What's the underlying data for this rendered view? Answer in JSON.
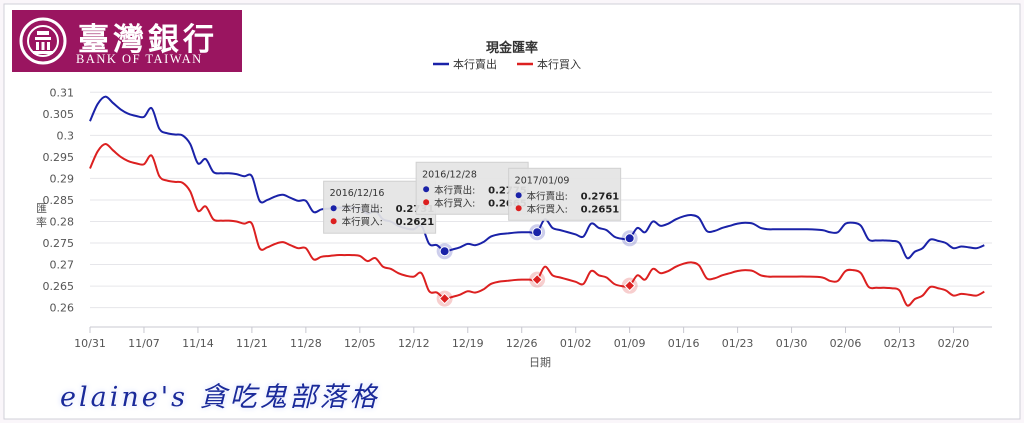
{
  "logo": {
    "name_cn": "臺灣銀行",
    "name_en": "BANK OF TAIWAN"
  },
  "watermark": "elaine's 貪吃鬼部落格",
  "chart_data": {
    "type": "line",
    "title": "現金匯率",
    "xlabel": "日期",
    "ylabel": "匯率",
    "ylim": [
      0.2555,
      0.311
    ],
    "y_ticks": [
      0.26,
      0.265,
      0.27,
      0.275,
      0.28,
      0.285,
      0.29,
      0.295,
      0.3,
      0.305,
      0.31
    ],
    "x_range": [
      "2016-10-31",
      "2017-02-25"
    ],
    "x_ticks": [
      {
        "date": "2016-10-31",
        "label": "10/31"
      },
      {
        "date": "2016-11-07",
        "label": "11/07"
      },
      {
        "date": "2016-11-14",
        "label": "11/14"
      },
      {
        "date": "2016-11-21",
        "label": "11/21"
      },
      {
        "date": "2016-11-28",
        "label": "11/28"
      },
      {
        "date": "2016-12-05",
        "label": "12/05"
      },
      {
        "date": "2016-12-12",
        "label": "12/12"
      },
      {
        "date": "2016-12-19",
        "label": "12/19"
      },
      {
        "date": "2016-12-26",
        "label": "12/26"
      },
      {
        "date": "2017-01-02",
        "label": "01/02"
      },
      {
        "date": "2017-01-09",
        "label": "01/09"
      },
      {
        "date": "2017-01-16",
        "label": "01/16"
      },
      {
        "date": "2017-01-23",
        "label": "01/23"
      },
      {
        "date": "2017-01-30",
        "label": "01/30"
      },
      {
        "date": "2017-02-06",
        "label": "02/06"
      },
      {
        "date": "2017-02-13",
        "label": "02/13"
      },
      {
        "date": "2017-02-20",
        "label": "02/20"
      }
    ],
    "grid": true,
    "legend": "top-center",
    "series": [
      {
        "name": "本行賣出",
        "color": "#1a22a8",
        "points": [
          [
            "2016-10-31",
            0.3033
          ],
          [
            "2016-11-01",
            0.3073
          ],
          [
            "2016-11-02",
            0.309
          ],
          [
            "2016-11-03",
            0.3075
          ],
          [
            "2016-11-04",
            0.306
          ],
          [
            "2016-11-05",
            0.305
          ],
          [
            "2016-11-06",
            0.3045
          ],
          [
            "2016-11-07",
            0.3043
          ],
          [
            "2016-11-08",
            0.3063
          ],
          [
            "2016-11-09",
            0.3015
          ],
          [
            "2016-11-10",
            0.3005
          ],
          [
            "2016-11-11",
            0.3002
          ],
          [
            "2016-11-12",
            0.3
          ],
          [
            "2016-11-13",
            0.298
          ],
          [
            "2016-11-14",
            0.2935
          ],
          [
            "2016-11-15",
            0.2945
          ],
          [
            "2016-11-16",
            0.2915
          ],
          [
            "2016-11-17",
            0.2912
          ],
          [
            "2016-11-18",
            0.2912
          ],
          [
            "2016-11-19",
            0.291
          ],
          [
            "2016-11-20",
            0.2905
          ],
          [
            "2016-11-21",
            0.2905
          ],
          [
            "2016-11-22",
            0.2848
          ],
          [
            "2016-11-23",
            0.285
          ],
          [
            "2016-11-24",
            0.2858
          ],
          [
            "2016-11-25",
            0.2862
          ],
          [
            "2016-11-26",
            0.2855
          ],
          [
            "2016-11-27",
            0.2848
          ],
          [
            "2016-11-28",
            0.2848
          ],
          [
            "2016-11-29",
            0.2822
          ],
          [
            "2016-11-30",
            0.2828
          ],
          [
            "2016-12-01",
            0.283
          ],
          [
            "2016-12-02",
            0.2832
          ],
          [
            "2016-12-03",
            0.2832
          ],
          [
            "2016-12-04",
            0.2832
          ],
          [
            "2016-12-05",
            0.283
          ],
          [
            "2016-12-06",
            0.2818
          ],
          [
            "2016-12-07",
            0.2825
          ],
          [
            "2016-12-08",
            0.2805
          ],
          [
            "2016-12-09",
            0.28
          ],
          [
            "2016-12-10",
            0.279
          ],
          [
            "2016-12-11",
            0.2784
          ],
          [
            "2016-12-12",
            0.2782
          ],
          [
            "2016-12-13",
            0.279
          ],
          [
            "2016-12-14",
            0.2748
          ],
          [
            "2016-12-15",
            0.2745
          ],
          [
            "2016-12-16",
            0.2731
          ],
          [
            "2016-12-17",
            0.2735
          ],
          [
            "2016-12-18",
            0.274
          ],
          [
            "2016-12-19",
            0.2748
          ],
          [
            "2016-12-20",
            0.2745
          ],
          [
            "2016-12-21",
            0.2752
          ],
          [
            "2016-12-22",
            0.2765
          ],
          [
            "2016-12-23",
            0.277
          ],
          [
            "2016-12-24",
            0.2772
          ],
          [
            "2016-12-25",
            0.2774
          ],
          [
            "2016-12-26",
            0.2775
          ],
          [
            "2016-12-27",
            0.2775
          ],
          [
            "2016-12-28",
            0.2775
          ],
          [
            "2016-12-29",
            0.2805
          ],
          [
            "2016-12-30",
            0.2785
          ],
          [
            "2016-12-31",
            0.278
          ],
          [
            "2017-01-01",
            0.2775
          ],
          [
            "2017-01-02",
            0.277
          ],
          [
            "2017-01-03",
            0.2765
          ],
          [
            "2017-01-04",
            0.2795
          ],
          [
            "2017-01-05",
            0.2785
          ],
          [
            "2017-01-06",
            0.278
          ],
          [
            "2017-01-07",
            0.2765
          ],
          [
            "2017-01-08",
            0.276
          ],
          [
            "2017-01-09",
            0.2761
          ],
          [
            "2017-01-10",
            0.2785
          ],
          [
            "2017-01-11",
            0.2775
          ],
          [
            "2017-01-12",
            0.28
          ],
          [
            "2017-01-13",
            0.279
          ],
          [
            "2017-01-14",
            0.2795
          ],
          [
            "2017-01-15",
            0.2805
          ],
          [
            "2017-01-16",
            0.2812
          ],
          [
            "2017-01-17",
            0.2815
          ],
          [
            "2017-01-18",
            0.2808
          ],
          [
            "2017-01-19",
            0.2778
          ],
          [
            "2017-01-20",
            0.2778
          ],
          [
            "2017-01-21",
            0.2785
          ],
          [
            "2017-01-22",
            0.279
          ],
          [
            "2017-01-23",
            0.2795
          ],
          [
            "2017-01-24",
            0.2797
          ],
          [
            "2017-01-25",
            0.2795
          ],
          [
            "2017-01-26",
            0.2785
          ],
          [
            "2017-01-27",
            0.2782
          ],
          [
            "2017-01-28",
            0.2782
          ],
          [
            "2017-01-30",
            0.2782
          ],
          [
            "2017-02-01",
            0.2782
          ],
          [
            "2017-02-03",
            0.278
          ],
          [
            "2017-02-04",
            0.2775
          ],
          [
            "2017-02-05",
            0.2775
          ],
          [
            "2017-02-06",
            0.2795
          ],
          [
            "2017-02-07",
            0.2797
          ],
          [
            "2017-02-08",
            0.279
          ],
          [
            "2017-02-09",
            0.2758
          ],
          [
            "2017-02-10",
            0.2756
          ],
          [
            "2017-02-11",
            0.2756
          ],
          [
            "2017-02-12",
            0.2755
          ],
          [
            "2017-02-13",
            0.275
          ],
          [
            "2017-02-14",
            0.2715
          ],
          [
            "2017-02-15",
            0.273
          ],
          [
            "2017-02-16",
            0.2738
          ],
          [
            "2017-02-17",
            0.2758
          ],
          [
            "2017-02-18",
            0.2755
          ],
          [
            "2017-02-19",
            0.275
          ],
          [
            "2017-02-20",
            0.2738
          ],
          [
            "2017-02-21",
            0.2742
          ],
          [
            "2017-02-22",
            0.274
          ],
          [
            "2017-02-23",
            0.2738
          ],
          [
            "2017-02-24",
            0.2745
          ]
        ]
      },
      {
        "name": "本行買入",
        "color": "#dc2020",
        "points": [
          [
            "2016-10-31",
            0.2923
          ],
          [
            "2016-11-01",
            0.2963
          ],
          [
            "2016-11-02",
            0.298
          ],
          [
            "2016-11-03",
            0.2965
          ],
          [
            "2016-11-04",
            0.295
          ],
          [
            "2016-11-05",
            0.294
          ],
          [
            "2016-11-06",
            0.2935
          ],
          [
            "2016-11-07",
            0.2933
          ],
          [
            "2016-11-08",
            0.2953
          ],
          [
            "2016-11-09",
            0.2905
          ],
          [
            "2016-11-10",
            0.2895
          ],
          [
            "2016-11-11",
            0.2892
          ],
          [
            "2016-11-12",
            0.289
          ],
          [
            "2016-11-13",
            0.287
          ],
          [
            "2016-11-14",
            0.2825
          ],
          [
            "2016-11-15",
            0.2835
          ],
          [
            "2016-11-16",
            0.2805
          ],
          [
            "2016-11-17",
            0.2802
          ],
          [
            "2016-11-18",
            0.2802
          ],
          [
            "2016-11-19",
            0.28
          ],
          [
            "2016-11-20",
            0.2795
          ],
          [
            "2016-11-21",
            0.2795
          ],
          [
            "2016-11-22",
            0.2738
          ],
          [
            "2016-11-23",
            0.274
          ],
          [
            "2016-11-24",
            0.2748
          ],
          [
            "2016-11-25",
            0.2752
          ],
          [
            "2016-11-26",
            0.2745
          ],
          [
            "2016-11-27",
            0.2738
          ],
          [
            "2016-11-28",
            0.2738
          ],
          [
            "2016-11-29",
            0.2712
          ],
          [
            "2016-11-30",
            0.2718
          ],
          [
            "2016-12-01",
            0.272
          ],
          [
            "2016-12-02",
            0.2722
          ],
          [
            "2016-12-03",
            0.2722
          ],
          [
            "2016-12-04",
            0.2722
          ],
          [
            "2016-12-05",
            0.272
          ],
          [
            "2016-12-06",
            0.2708
          ],
          [
            "2016-12-07",
            0.2715
          ],
          [
            "2016-12-08",
            0.2695
          ],
          [
            "2016-12-09",
            0.269
          ],
          [
            "2016-12-10",
            0.268
          ],
          [
            "2016-12-11",
            0.2674
          ],
          [
            "2016-12-12",
            0.2672
          ],
          [
            "2016-12-13",
            0.268
          ],
          [
            "2016-12-14",
            0.2638
          ],
          [
            "2016-12-15",
            0.2635
          ],
          [
            "2016-12-16",
            0.2621
          ],
          [
            "2016-12-17",
            0.2625
          ],
          [
            "2016-12-18",
            0.263
          ],
          [
            "2016-12-19",
            0.2638
          ],
          [
            "2016-12-20",
            0.2635
          ],
          [
            "2016-12-21",
            0.2642
          ],
          [
            "2016-12-22",
            0.2655
          ],
          [
            "2016-12-23",
            0.266
          ],
          [
            "2016-12-24",
            0.2662
          ],
          [
            "2016-12-25",
            0.2664
          ],
          [
            "2016-12-26",
            0.2665
          ],
          [
            "2016-12-27",
            0.2665
          ],
          [
            "2016-12-28",
            0.2665
          ],
          [
            "2016-12-29",
            0.2695
          ],
          [
            "2016-12-30",
            0.2675
          ],
          [
            "2016-12-31",
            0.267
          ],
          [
            "2017-01-01",
            0.2665
          ],
          [
            "2017-01-02",
            0.266
          ],
          [
            "2017-01-03",
            0.2655
          ],
          [
            "2017-01-04",
            0.2685
          ],
          [
            "2017-01-05",
            0.2675
          ],
          [
            "2017-01-06",
            0.267
          ],
          [
            "2017-01-07",
            0.2655
          ],
          [
            "2017-01-08",
            0.265
          ],
          [
            "2017-01-09",
            0.2651
          ],
          [
            "2017-01-10",
            0.2675
          ],
          [
            "2017-01-11",
            0.2665
          ],
          [
            "2017-01-12",
            0.269
          ],
          [
            "2017-01-13",
            0.268
          ],
          [
            "2017-01-14",
            0.2685
          ],
          [
            "2017-01-15",
            0.2695
          ],
          [
            "2017-01-16",
            0.2702
          ],
          [
            "2017-01-17",
            0.2705
          ],
          [
            "2017-01-18",
            0.2698
          ],
          [
            "2017-01-19",
            0.2668
          ],
          [
            "2017-01-20",
            0.2668
          ],
          [
            "2017-01-21",
            0.2675
          ],
          [
            "2017-01-22",
            0.268
          ],
          [
            "2017-01-23",
            0.2685
          ],
          [
            "2017-01-24",
            0.2687
          ],
          [
            "2017-01-25",
            0.2685
          ],
          [
            "2017-01-26",
            0.2675
          ],
          [
            "2017-01-27",
            0.2672
          ],
          [
            "2017-01-28",
            0.2672
          ],
          [
            "2017-01-30",
            0.2672
          ],
          [
            "2017-02-01",
            0.2672
          ],
          [
            "2017-02-03",
            0.267
          ],
          [
            "2017-02-04",
            0.2662
          ],
          [
            "2017-02-05",
            0.2662
          ],
          [
            "2017-02-06",
            0.2685
          ],
          [
            "2017-02-07",
            0.2687
          ],
          [
            "2017-02-08",
            0.268
          ],
          [
            "2017-02-09",
            0.2648
          ],
          [
            "2017-02-10",
            0.2646
          ],
          [
            "2017-02-11",
            0.2646
          ],
          [
            "2017-02-12",
            0.2645
          ],
          [
            "2017-02-13",
            0.264
          ],
          [
            "2017-02-14",
            0.2605
          ],
          [
            "2017-02-15",
            0.262
          ],
          [
            "2017-02-16",
            0.2628
          ],
          [
            "2017-02-17",
            0.2648
          ],
          [
            "2017-02-18",
            0.2645
          ],
          [
            "2017-02-19",
            0.264
          ],
          [
            "2017-02-20",
            0.2628
          ],
          [
            "2017-02-21",
            0.2632
          ],
          [
            "2017-02-22",
            0.263
          ],
          [
            "2017-02-23",
            0.2628
          ],
          [
            "2017-02-24",
            0.2637
          ]
        ]
      }
    ],
    "tooltips": [
      {
        "date": "2016-12-16",
        "label": "2016/12/16",
        "sell": 0.2731,
        "buy": 0.2621,
        "placement": "above-left"
      },
      {
        "date": "2016-12-28",
        "label": "2016/12/28",
        "sell": 0.2775,
        "buy": 0.2665,
        "placement": "above-left"
      },
      {
        "date": "2017-01-09",
        "label": "2017/01/09",
        "sell": 0.2761,
        "buy": 0.2651,
        "placement": "above-left"
      }
    ]
  }
}
